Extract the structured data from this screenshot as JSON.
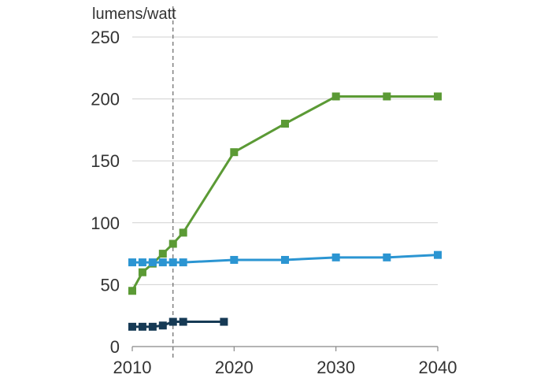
{
  "chart_data": {
    "type": "line",
    "title": "",
    "ylabel": "lumens/watt",
    "xlabel": "",
    "xlim": [
      2010,
      2040
    ],
    "ylim": [
      0,
      250
    ],
    "x_ticks": [
      2010,
      2020,
      2030,
      2040
    ],
    "y_ticks": [
      0,
      50,
      100,
      150,
      200,
      250
    ],
    "grid": true,
    "reference_line": {
      "x": 2014,
      "style": "dashed"
    },
    "series": [
      {
        "name": "green",
        "color": "#5b9a35",
        "points": [
          [
            2010,
            45
          ],
          [
            2011,
            60
          ],
          [
            2012,
            67
          ],
          [
            2013,
            75
          ],
          [
            2014,
            83
          ],
          [
            2015,
            92
          ],
          [
            2020,
            157
          ],
          [
            2025,
            180
          ],
          [
            2030,
            202
          ],
          [
            2035,
            202
          ],
          [
            2040,
            202
          ]
        ]
      },
      {
        "name": "light-blue",
        "color": "#2b95d2",
        "points": [
          [
            2010,
            68
          ],
          [
            2011,
            68
          ],
          [
            2012,
            68
          ],
          [
            2013,
            68
          ],
          [
            2014,
            68
          ],
          [
            2015,
            68
          ],
          [
            2020,
            70
          ],
          [
            2025,
            70
          ],
          [
            2030,
            72
          ],
          [
            2035,
            72
          ],
          [
            2040,
            74
          ]
        ]
      },
      {
        "name": "dark-navy",
        "color": "#163a55",
        "points": [
          [
            2010,
            16
          ],
          [
            2011,
            16
          ],
          [
            2012,
            16
          ],
          [
            2013,
            17
          ],
          [
            2014,
            20
          ],
          [
            2015,
            20
          ],
          [
            2019,
            20
          ]
        ]
      }
    ]
  }
}
